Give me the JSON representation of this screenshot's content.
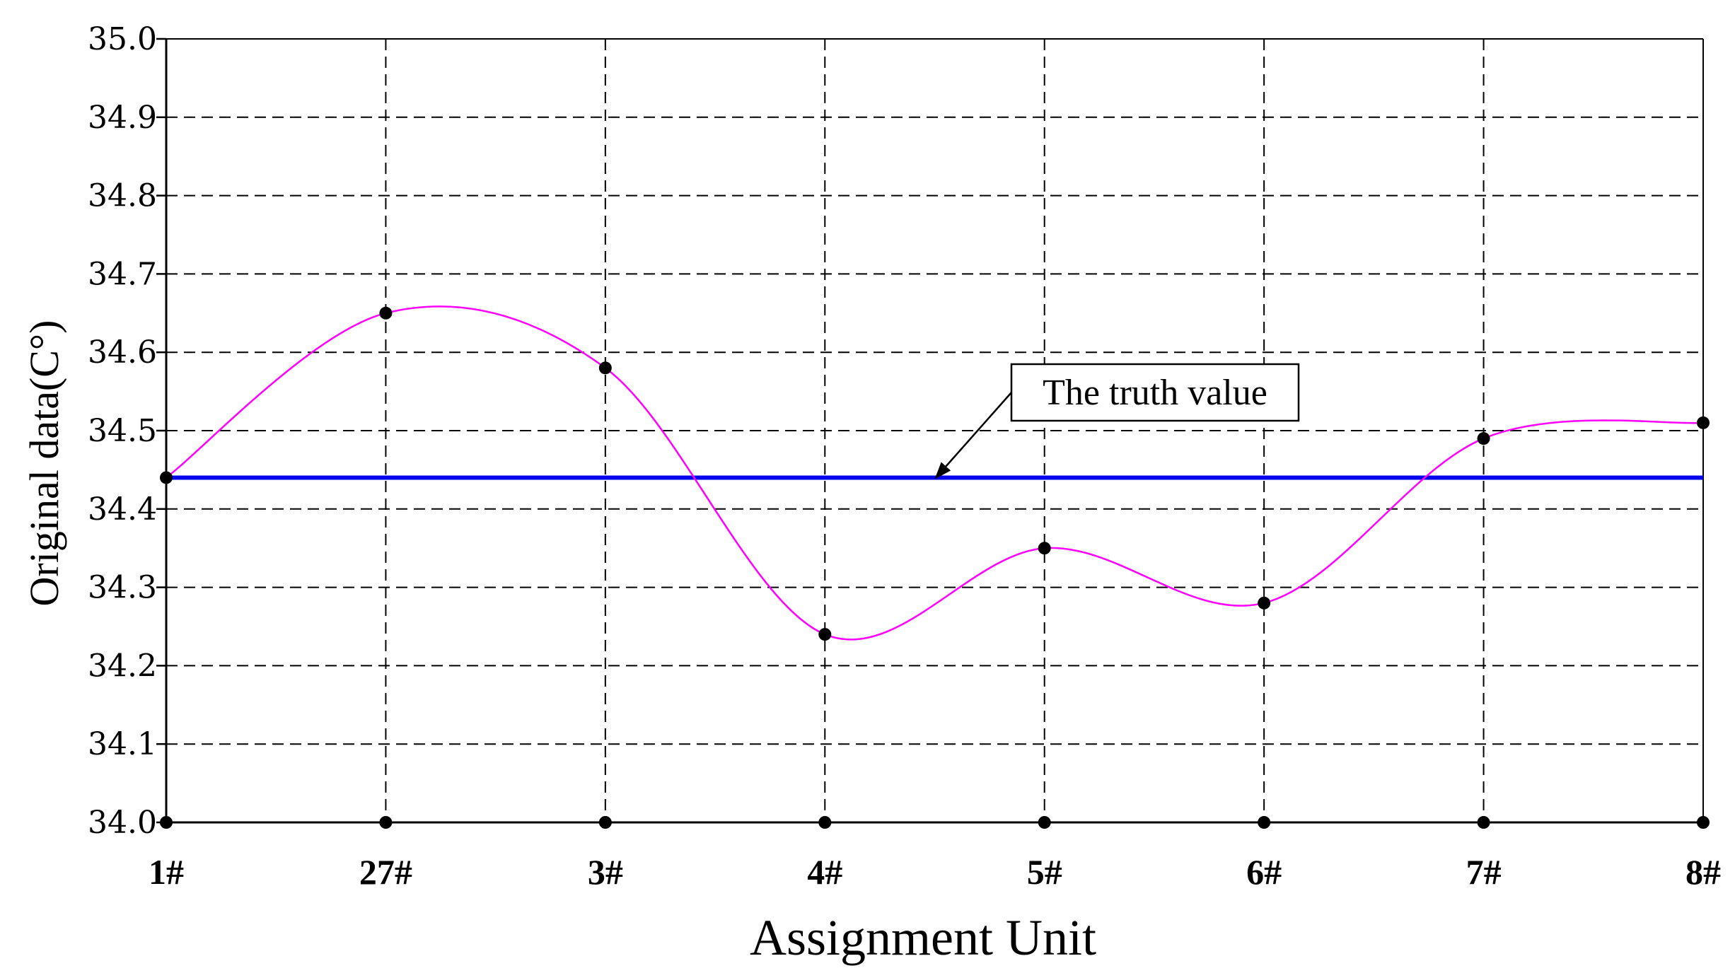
{
  "chart_data": {
    "type": "line",
    "xlabel": "Assignment Unit",
    "ylabel": "Original data(C°)",
    "categories": [
      "1#",
      "27#",
      "3#",
      "4#",
      "5#",
      "6#",
      "7#",
      "8#"
    ],
    "series": [
      {
        "values": [
          34.44,
          34.65,
          34.58,
          34.24,
          34.35,
          34.28,
          34.49,
          34.51
        ],
        "color": "#ff00ff",
        "marker_color": "#000000",
        "smooth": true
      }
    ],
    "baseline_markers": {
      "value": 34.0,
      "color": "#000000"
    },
    "reference_line": {
      "label": "The truth value",
      "value": 34.44,
      "color": "#0000ee"
    },
    "annotation": {
      "text": "The truth value",
      "points_to_category_position": 3.5
    },
    "ylim": [
      34.0,
      35.0
    ],
    "yticks": [
      "34.0",
      "34.1",
      "34.2",
      "34.3",
      "34.4",
      "34.5",
      "34.6",
      "34.7",
      "34.8",
      "34.9",
      "35.0"
    ],
    "ytick_values": [
      34.0,
      34.1,
      34.2,
      34.3,
      34.4,
      34.5,
      34.6,
      34.7,
      34.8,
      34.9,
      35.0
    ],
    "grid": true,
    "grid_style": "dashed",
    "legend": "none"
  }
}
